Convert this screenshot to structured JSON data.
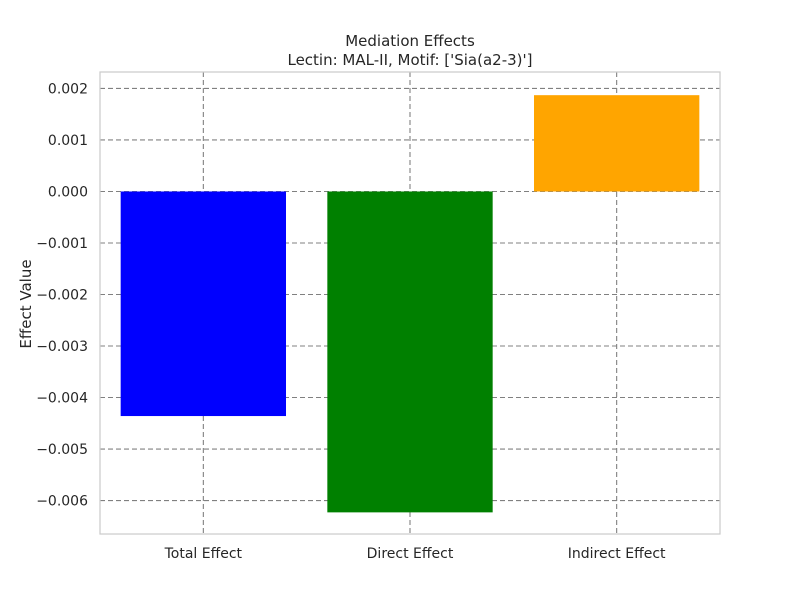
{
  "chart_data": {
    "type": "bar",
    "title": "Mediation Effects",
    "subtitle": "Lectin: MAL-II, Motif: ['Sia(a2-3)']",
    "xlabel": "",
    "ylabel": "Effect Value",
    "categories": [
      "Total Effect",
      "Direct Effect",
      "Indirect Effect"
    ],
    "values": [
      -0.00436,
      -0.00623,
      0.00187
    ],
    "colors": [
      "#0000ff",
      "#008000",
      "#ffa500"
    ],
    "ylim": [
      -0.00665,
      0.00232
    ],
    "yticks": [
      0.002,
      0.001,
      0.0,
      -0.001,
      -0.002,
      -0.003,
      -0.004,
      -0.005,
      -0.006
    ],
    "ytick_labels": [
      "0.002",
      "0.001",
      "0.000",
      "−0.001",
      "−0.002",
      "−0.003",
      "−0.004",
      "−0.005",
      "−0.006"
    ],
    "grid": true,
    "grid_style": "dashed",
    "grid_color": "#808080",
    "spine_color": "#cccccc"
  }
}
